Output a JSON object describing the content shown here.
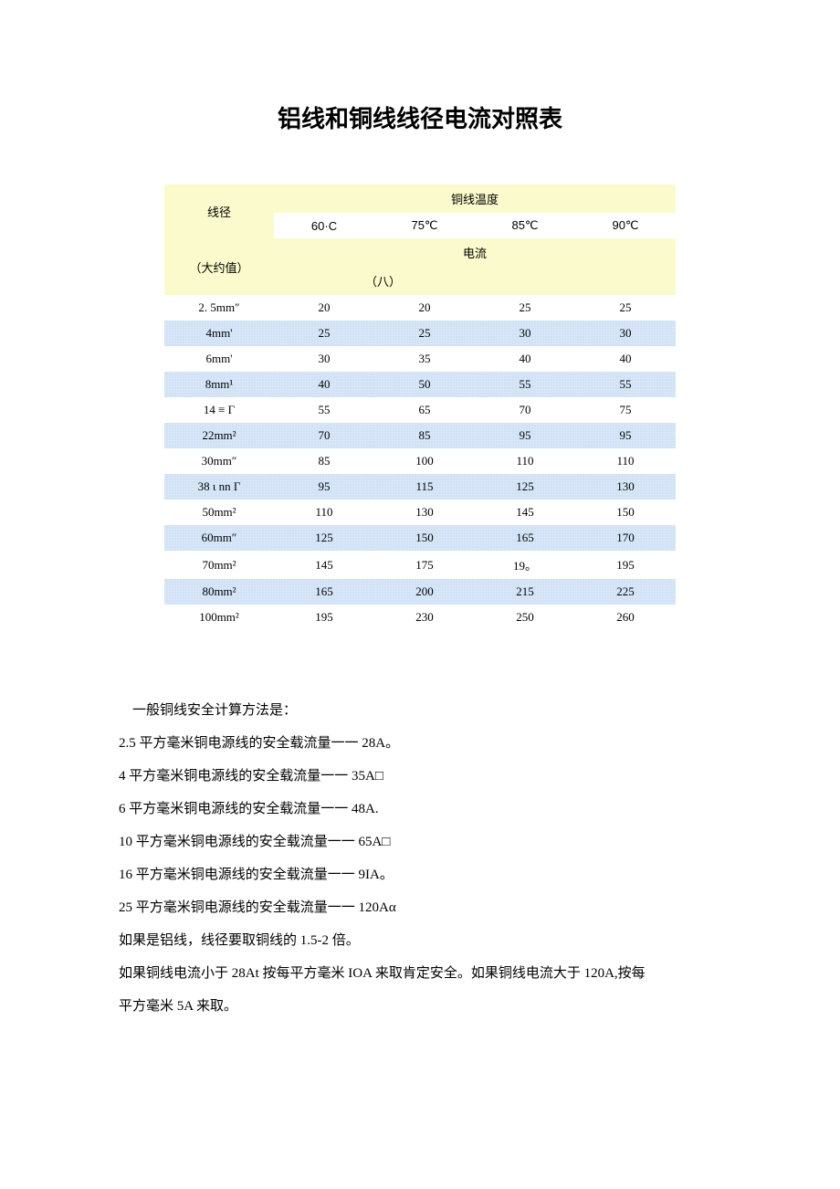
{
  "title": "铝线和铜线线径电流对照表",
  "table": {
    "header": {
      "left_line1": "线径",
      "left_line2": "（大约值）",
      "top_label": "铜线温度",
      "temps": [
        "60·C",
        "75℃",
        "85℃",
        "90℃"
      ],
      "mid_label": "电流",
      "mid_sub": "（八）"
    },
    "row_type": "row-blue-dots",
    "rows": [
      {
        "style": "row-white",
        "diam": "2. 5mm″",
        "v": [
          "20",
          "20",
          "25",
          "25"
        ]
      },
      {
        "style": "row-blue-dots",
        "diam": "4mm'",
        "v": [
          "25",
          "25",
          "30",
          "30"
        ]
      },
      {
        "style": "row-white",
        "diam": "6mm'",
        "v": [
          "30",
          "35",
          "40",
          "40"
        ]
      },
      {
        "style": "row-blue-dots",
        "diam": "8mm¹",
        "v": [
          "40",
          "50",
          "55",
          "55"
        ]
      },
      {
        "style": "row-white",
        "diam": "14 ≡ Γ",
        "v": [
          "55",
          "65",
          "70",
          "75"
        ]
      },
      {
        "style": "row-blue-dots",
        "diam": "22mm²",
        "v": [
          "70",
          "85",
          "95",
          "95"
        ]
      },
      {
        "style": "row-white",
        "diam": "30mm″",
        "v": [
          "85",
          "100",
          "110",
          "110"
        ]
      },
      {
        "style": "row-blue-dots",
        "diam": "38 ι nn Γ",
        "v": [
          "95",
          "115",
          "125",
          "130"
        ]
      },
      {
        "style": "row-white",
        "diam": "50mm²",
        "v": [
          "110",
          "130",
          "145",
          "150"
        ]
      },
      {
        "style": "row-blue-dots",
        "diam": "60mm″",
        "v": [
          "125",
          "150",
          "165",
          "170"
        ]
      },
      {
        "style": "row-white",
        "diam": "70mm²",
        "v": [
          "145",
          "175",
          "19。",
          "195"
        ]
      },
      {
        "style": "row-blue-dots",
        "diam": "80mm²",
        "v": [
          "165",
          "200",
          "215",
          "225"
        ]
      },
      {
        "style": "row-white",
        "diam": "100mm²",
        "v": [
          "195",
          "230",
          "250",
          "260"
        ]
      }
    ]
  },
  "paragraphs": [
    {
      "indent": true,
      "text": "一般铜线安全计算方法是："
    },
    {
      "indent": false,
      "text": "2.5 平方毫米铜电源线的安全载流量一一 28A。"
    },
    {
      "indent": false,
      "text": "4 平方毫米铜电源线的安全载流量一一 35A□"
    },
    {
      "indent": false,
      "text": "6 平方毫米铜电源线的安全载流量一一 48A."
    },
    {
      "indent": false,
      "text": "10 平方毫米铜电源线的安全载流量一一 65A□"
    },
    {
      "indent": false,
      "text": "16 平方毫米铜电源线的安全载流量一一 9IA。"
    },
    {
      "indent": false,
      "text": "25 平方毫米铜电源线的安全载流量一一 120Aα"
    },
    {
      "indent": false,
      "text": "如果是铝线，线径要取铜线的 1.5-2 倍。"
    },
    {
      "indent": false,
      "text": "如果铜线电流小于 28At 按每平方毫米 IOA 来取肯定安全。如果铜线电流大于 120A,按每"
    },
    {
      "indent": false,
      "text": "平方毫米 5A 来取。"
    }
  ]
}
